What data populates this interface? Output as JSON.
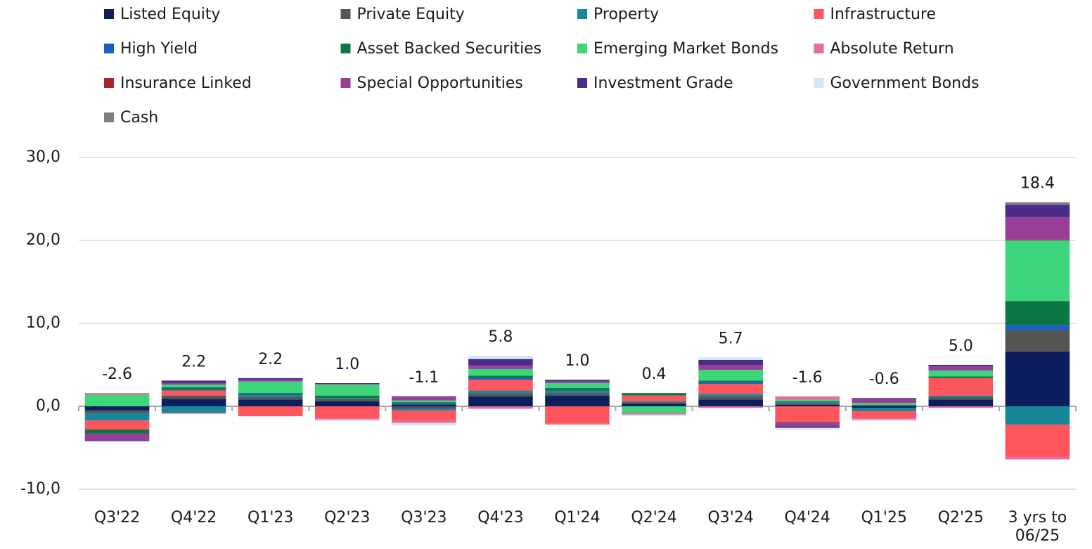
{
  "chart_data": {
    "type": "stacked_bar",
    "categories": [
      "Q3'22",
      "Q4'22",
      "Q1'23",
      "Q2'23",
      "Q3'23",
      "Q4'23",
      "Q1'24",
      "Q2'24",
      "Q3'24",
      "Q4'24",
      "Q1'25",
      "Q2'25",
      "3 yrs to 06/25"
    ],
    "series": [
      {
        "name": "Listed Equity",
        "color": "#0b1f5e",
        "values": [
          -0.5,
          0.9,
          0.8,
          0.6,
          0.2,
          1.2,
          1.3,
          0.3,
          0.8,
          0.2,
          -0.2,
          0.8,
          6.6
        ]
      },
      {
        "name": "Private Equity",
        "color": "#555555",
        "values": [
          -0.3,
          0.4,
          0.3,
          0.3,
          -0.3,
          0.4,
          0.3,
          0.2,
          0.4,
          0.2,
          0.1,
          0.3,
          2.6
        ]
      },
      {
        "name": "Property",
        "color": "#17879a",
        "values": [
          -0.9,
          -0.8,
          0.2,
          0.1,
          -0.2,
          0.3,
          0.2,
          0.1,
          0.3,
          0.1,
          -0.4,
          0.2,
          -2.2
        ]
      },
      {
        "name": "Infrastructure",
        "color": "#ff555c",
        "values": [
          -1.1,
          0.6,
          -1.2,
          -1.4,
          -1.2,
          1.3,
          -2.1,
          0.7,
          1.2,
          -1.9,
          -0.8,
          2.1,
          -3.9
        ]
      },
      {
        "name": "High Yield",
        "color": "#1a5fc4",
        "values": [
          0,
          0.1,
          0.1,
          0,
          0.1,
          0.2,
          0.1,
          0,
          0.2,
          -0.1,
          0,
          0,
          0.6
        ]
      },
      {
        "name": "Asset Backed Securities",
        "color": "#0c7745",
        "values": [
          -0.5,
          0.3,
          0.2,
          0.3,
          0.2,
          0.3,
          0.3,
          0.3,
          0.2,
          0.1,
          0.1,
          0.2,
          2.9
        ]
      },
      {
        "name": "Emerging Market Bonds",
        "color": "#3ed67a",
        "values": [
          1.4,
          0.3,
          1.4,
          1.3,
          0.2,
          0.8,
          0.6,
          -0.8,
          1.3,
          0.2,
          0.2,
          0.7,
          7.3
        ]
      },
      {
        "name": "Absolute Return",
        "color": "#e86a9e",
        "values": [
          0.2,
          -0.1,
          0,
          -0.2,
          -0.3,
          -0.3,
          -0.1,
          -0.2,
          -0.2,
          0.4,
          -0.2,
          -0.2,
          -0.3
        ]
      },
      {
        "name": "Insurance Linked",
        "color": "#a3262a",
        "values": [
          0,
          0,
          0,
          0,
          0,
          0,
          0,
          0,
          0,
          -0.1,
          0,
          0,
          0.1
        ]
      },
      {
        "name": "Special Opportunities",
        "color": "#9a3f98",
        "values": [
          -0.8,
          0.2,
          0.2,
          0.1,
          0.4,
          0.4,
          0.2,
          0,
          0.6,
          -0.3,
          0.5,
          0.5,
          2.7
        ]
      },
      {
        "name": "Investment Grade",
        "color": "#4a2c8a",
        "values": [
          -0.1,
          0.3,
          0.2,
          0.1,
          0.1,
          0.8,
          0.2,
          0,
          0.6,
          -0.2,
          0.1,
          0.2,
          1.5
        ]
      },
      {
        "name": "Government Bonds",
        "color": "#d6e4f3",
        "values": [
          0,
          0,
          0,
          -0.2,
          -0.3,
          0.4,
          0,
          -0.2,
          0.3,
          -0.2,
          -0.2,
          0,
          0
        ]
      },
      {
        "name": "Cash",
        "color": "#7f7f7f",
        "values": [
          0,
          0,
          0,
          0,
          0,
          0,
          0,
          0,
          0,
          0,
          0,
          0,
          0.3
        ]
      }
    ],
    "totals": {
      "values": [
        -2.6,
        2.2,
        2.2,
        1.0,
        -1.1,
        5.8,
        1.0,
        0.4,
        5.7,
        -1.6,
        -0.6,
        5.0,
        18.4
      ],
      "value_labels": [
        "-2.6",
        "2.2",
        "2.2",
        "1.0",
        "-1.1",
        "5.8",
        "1.0",
        "0.4",
        "5.7",
        "-1.6",
        "-0.6",
        "5.0",
        "18.4"
      ]
    },
    "ylim": [
      -10,
      30
    ],
    "yticks": [
      {
        "value": -10,
        "label": "-10,0"
      },
      {
        "value": 0,
        "label": "0,0"
      },
      {
        "value": 10,
        "label": "10,0"
      },
      {
        "value": 20,
        "label": "20,0"
      },
      {
        "value": 30,
        "label": "30,0"
      }
    ],
    "grid": true,
    "legend": "top"
  }
}
